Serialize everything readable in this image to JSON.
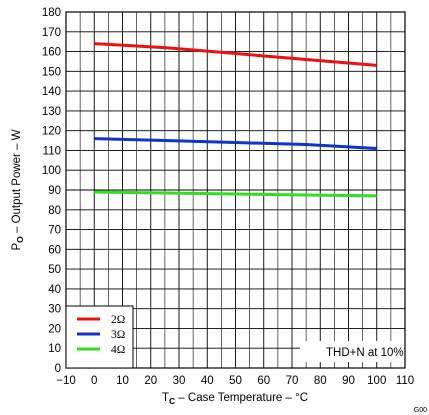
{
  "chart_data": {
    "type": "line",
    "x": [
      0,
      25,
      50,
      75,
      100
    ],
    "series": [
      {
        "name": "2Ω",
        "color": "#ee1111",
        "values": [
          164,
          162,
          159,
          156,
          153
        ]
      },
      {
        "name": "3Ω",
        "color": "#1133cc",
        "values": [
          116,
          115,
          114,
          113,
          111
        ]
      },
      {
        "name": "4Ω",
        "color": "#33dd22",
        "values": [
          89,
          88.5,
          88,
          87.5,
          87
        ]
      }
    ],
    "xlim": [
      -10,
      110
    ],
    "ylim": [
      0,
      180
    ],
    "x_ticks": [
      -10,
      0,
      10,
      20,
      30,
      40,
      50,
      60,
      70,
      80,
      90,
      100,
      110
    ],
    "y_ticks": [
      0,
      10,
      20,
      30,
      40,
      50,
      60,
      70,
      80,
      90,
      100,
      110,
      120,
      130,
      140,
      150,
      160,
      170,
      180
    ],
    "xlabel": {
      "main": "T",
      "sub": "C",
      "rest": " – Case Temperature – °C"
    },
    "ylabel": {
      "main": "P",
      "sub": "O",
      "rest": " – Output Power – W"
    },
    "annotation": "THD+N at 10%",
    "legend_position": "bottom-left",
    "grid": true,
    "figure_code": "G00"
  }
}
